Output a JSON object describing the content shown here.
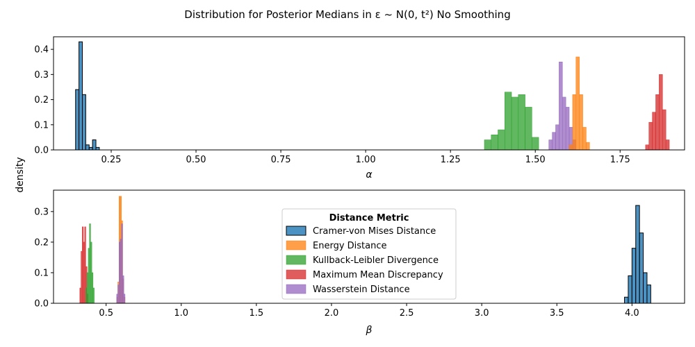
{
  "figure": {
    "title": "Distribution for Posterior Medians in ε ~ N(0, t²) No Smoothing",
    "ylabel": "density"
  },
  "colors": {
    "Cramer-von Mises Distance": "#1f77b4",
    "Energy Distance": "#ff7f0e",
    "Kullback-Leibler Divergence": "#2ca02c",
    "Maximum Mean Discrepancy": "#d62728",
    "Wasserstein Distance": "#9467bd"
  },
  "legend": {
    "title": "Distance Metric",
    "entries": [
      "Cramer-von Mises Distance",
      "Energy Distance",
      "Kullback-Leibler Divergence",
      "Maximum Mean Discrepancy",
      "Wasserstein Distance"
    ],
    "placement": "center (bottom panel)"
  },
  "chart_data": [
    {
      "type": "histogram",
      "xlabel": "α",
      "xlim": [
        0.08,
        1.94
      ],
      "ylim": [
        0,
        0.45
      ],
      "xticks": [
        "0.25",
        "0.50",
        "0.75",
        "1.00",
        "1.25",
        "1.50",
        "1.75"
      ],
      "xtick_values": [
        0.25,
        0.5,
        0.75,
        1.0,
        1.25,
        1.5,
        1.75
      ],
      "yticks": [
        "0.0",
        "0.1",
        "0.2",
        "0.3",
        "0.4"
      ],
      "ytick_values": [
        0,
        0.1,
        0.2,
        0.3,
        0.4
      ],
      "series": [
        {
          "name": "Cramer-von Mises Distance",
          "bins": [
            [
              0.145,
              0.155,
              0.24
            ],
            [
              0.155,
              0.165,
              0.43
            ],
            [
              0.165,
              0.175,
              0.22
            ],
            [
              0.175,
              0.185,
              0.02
            ],
            [
              0.185,
              0.195,
              0.01
            ],
            [
              0.195,
              0.205,
              0.04
            ],
            [
              0.205,
              0.215,
              0.01
            ]
          ]
        },
        {
          "name": "Kullback-Leibler Divergence",
          "bins": [
            [
              1.35,
              1.37,
              0.04
            ],
            [
              1.37,
              1.39,
              0.06
            ],
            [
              1.39,
              1.41,
              0.08
            ],
            [
              1.41,
              1.43,
              0.23
            ],
            [
              1.43,
              1.45,
              0.21
            ],
            [
              1.45,
              1.47,
              0.22
            ],
            [
              1.47,
              1.49,
              0.17
            ],
            [
              1.49,
              1.51,
              0.05
            ]
          ]
        },
        {
          "name": "Wasserstein Distance",
          "bins": [
            [
              1.54,
              1.55,
              0.04
            ],
            [
              1.55,
              1.56,
              0.07
            ],
            [
              1.56,
              1.57,
              0.1
            ],
            [
              1.57,
              1.58,
              0.35
            ],
            [
              1.58,
              1.59,
              0.21
            ],
            [
              1.59,
              1.6,
              0.17
            ],
            [
              1.6,
              1.61,
              0.09
            ],
            [
              1.61,
              1.62,
              0.04
            ]
          ]
        },
        {
          "name": "Energy Distance",
          "bins": [
            [
              1.6,
              1.61,
              0.02
            ],
            [
              1.61,
              1.62,
              0.22
            ],
            [
              1.62,
              1.63,
              0.37
            ],
            [
              1.63,
              1.64,
              0.22
            ],
            [
              1.64,
              1.65,
              0.09
            ],
            [
              1.65,
              1.66,
              0.03
            ]
          ]
        },
        {
          "name": "Maximum Mean Discrepancy",
          "bins": [
            [
              1.825,
              1.835,
              0.02
            ],
            [
              1.835,
              1.845,
              0.11
            ],
            [
              1.845,
              1.855,
              0.15
            ],
            [
              1.855,
              1.865,
              0.22
            ],
            [
              1.865,
              1.875,
              0.3
            ],
            [
              1.875,
              1.885,
              0.16
            ],
            [
              1.885,
              1.895,
              0.04
            ]
          ]
        }
      ]
    },
    {
      "type": "histogram",
      "xlabel": "β",
      "xlim": [
        0.15,
        4.35
      ],
      "ylim": [
        0,
        0.37
      ],
      "xticks": [
        "0.5",
        "1.0",
        "1.5",
        "2.0",
        "2.5",
        "3.0",
        "3.5",
        "4.0"
      ],
      "xtick_values": [
        0.5,
        1.0,
        1.5,
        2.0,
        2.5,
        3.0,
        3.5,
        4.0
      ],
      "yticks": [
        "0.0",
        "0.1",
        "0.2",
        "0.3"
      ],
      "ytick_values": [
        0,
        0.1,
        0.2,
        0.3
      ],
      "series": [
        {
          "name": "Maximum Mean Discrepancy",
          "bins": [
            [
              0.325,
              0.333,
              0.05
            ],
            [
              0.333,
              0.341,
              0.17
            ],
            [
              0.341,
              0.349,
              0.25
            ],
            [
              0.349,
              0.357,
              0.2
            ],
            [
              0.357,
              0.365,
              0.25
            ],
            [
              0.365,
              0.373,
              0.12
            ],
            [
              0.373,
              0.381,
              0.03
            ]
          ]
        },
        {
          "name": "Kullback-Leibler Divergence",
          "bins": [
            [
              0.365,
              0.373,
              0.05
            ],
            [
              0.373,
              0.381,
              0.1
            ],
            [
              0.381,
              0.389,
              0.18
            ],
            [
              0.389,
              0.397,
              0.26
            ],
            [
              0.397,
              0.405,
              0.2
            ],
            [
              0.405,
              0.413,
              0.1
            ],
            [
              0.413,
              0.421,
              0.05
            ]
          ]
        },
        {
          "name": "Energy Distance",
          "bins": [
            [
              0.57,
              0.578,
              0.02
            ],
            [
              0.578,
              0.586,
              0.07
            ],
            [
              0.586,
              0.594,
              0.35
            ],
            [
              0.594,
              0.602,
              0.35
            ],
            [
              0.602,
              0.61,
              0.27
            ],
            [
              0.61,
              0.618,
              0.08
            ],
            [
              0.618,
              0.626,
              0.02
            ]
          ]
        },
        {
          "name": "Wasserstein Distance",
          "bins": [
            [
              0.57,
              0.578,
              0.03
            ],
            [
              0.578,
              0.586,
              0.06
            ],
            [
              0.586,
              0.594,
              0.2
            ],
            [
              0.594,
              0.602,
              0.21
            ],
            [
              0.602,
              0.61,
              0.26
            ],
            [
              0.61,
              0.618,
              0.09
            ],
            [
              0.618,
              0.626,
              0.03
            ]
          ]
        },
        {
          "name": "Cramer-von Mises Distance",
          "bins": [
            [
              3.95,
              3.975,
              0.02
            ],
            [
              3.975,
              4.0,
              0.09
            ],
            [
              4.0,
              4.025,
              0.18
            ],
            [
              4.025,
              4.05,
              0.32
            ],
            [
              4.05,
              4.075,
              0.23
            ],
            [
              4.075,
              4.1,
              0.1
            ],
            [
              4.1,
              4.125,
              0.06
            ]
          ]
        }
      ]
    }
  ]
}
